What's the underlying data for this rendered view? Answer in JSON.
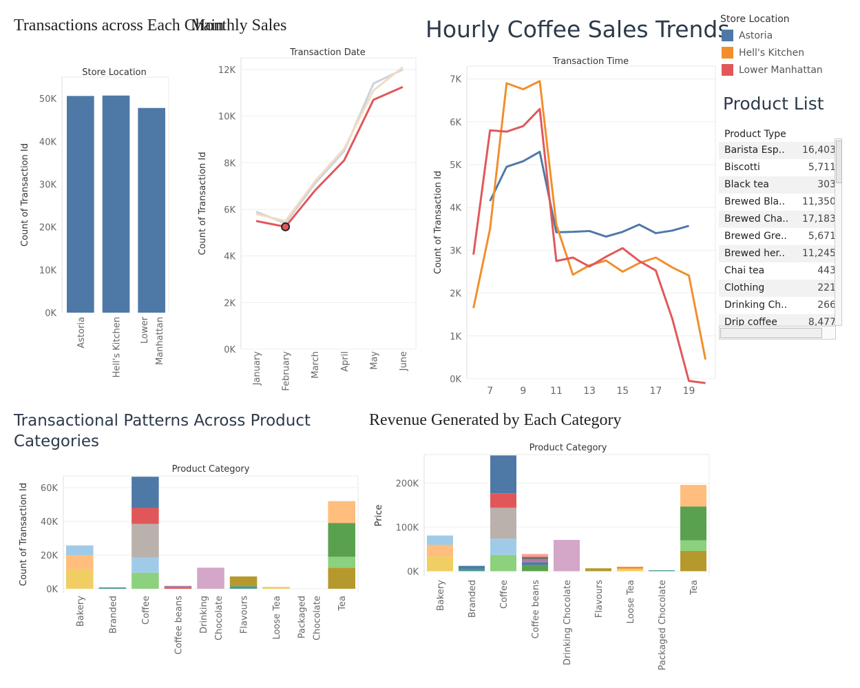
{
  "titles": {
    "chain": "Transactions across Each Chain",
    "monthly": "Monthly Sales",
    "hourly": "Hourly Coffee Sales Trends",
    "patterns": "Transactional Patterns Across Product Categories",
    "revenue": "Revenue Generated by Each Category"
  },
  "legend": {
    "title": "Store Location",
    "items": [
      {
        "label": "Astoria",
        "color": "#4e79a7"
      },
      {
        "label": "Hell's Kitchen",
        "color": "#f28e2b"
      },
      {
        "label": "Lower Manhattan",
        "color": "#e15759"
      }
    ]
  },
  "product_list": {
    "title": "Product List",
    "header": "Product Type",
    "rows": [
      {
        "name": "Barista Esp..",
        "value": "16,403"
      },
      {
        "name": "Biscotti",
        "value": "5,711"
      },
      {
        "name": "Black tea",
        "value": "303"
      },
      {
        "name": "Brewed Bla..",
        "value": "11,350"
      },
      {
        "name": "Brewed Cha..",
        "value": "17,183"
      },
      {
        "name": "Brewed Gre..",
        "value": "5,671"
      },
      {
        "name": "Brewed her..",
        "value": "11,245"
      },
      {
        "name": "Chai tea",
        "value": "443"
      },
      {
        "name": "Clothing",
        "value": "221"
      },
      {
        "name": "Drinking Ch..",
        "value": "266"
      },
      {
        "name": "Drip coffee",
        "value": "8,477"
      }
    ]
  },
  "chart_data": [
    {
      "id": "chain",
      "type": "bar",
      "header": "Store Location",
      "ylabel": "Count of Transaction Id",
      "ylim": [
        0,
        55000
      ],
      "yticks": [
        0,
        10000,
        20000,
        30000,
        40000,
        50000
      ],
      "ytick_labels": [
        "0K",
        "10K",
        "20K",
        "30K",
        "40K",
        "50K"
      ],
      "categories": [
        "Astoria",
        "Hell's Kitchen",
        "Lower Manhattan"
      ],
      "tick_lines": [
        [
          "Astoria"
        ],
        [
          "Hell's Kitchen"
        ],
        [
          "Lower",
          "Manhattan"
        ]
      ],
      "values": [
        50600,
        50700,
        47800
      ],
      "color": "#4e79a7"
    },
    {
      "id": "monthly",
      "type": "line",
      "header": "Transaction Date",
      "ylabel": "Count of Transaction Id",
      "ylim": [
        0,
        12500
      ],
      "yticks": [
        0,
        2000,
        4000,
        6000,
        8000,
        10000,
        12000
      ],
      "ytick_labels": [
        "0K",
        "2K",
        "4K",
        "6K",
        "8K",
        "10K",
        "12K"
      ],
      "categories": [
        "January",
        "February",
        "March",
        "April",
        "May",
        "June"
      ],
      "series": [
        {
          "name": "Astoria",
          "values": [
            5900,
            5400,
            7100,
            8500,
            11400,
            12000
          ],
          "color": "#c8d3de"
        },
        {
          "name": "Hell's Kitchen",
          "values": [
            5800,
            5500,
            7200,
            8600,
            11100,
            12100
          ],
          "color": "#f3dcc2"
        },
        {
          "name": "Lower Manhattan",
          "values": [
            5500,
            5250,
            6800,
            8100,
            10700,
            11250
          ],
          "color": "#e15759"
        }
      ],
      "highlight": {
        "series": "Lower Manhattan",
        "category": "February"
      }
    },
    {
      "id": "hourly",
      "type": "line",
      "header": "Transaction Time",
      "ylabel": "Count of Transaction Id",
      "ylim": [
        0,
        7300
      ],
      "yticks": [
        0,
        1000,
        2000,
        3000,
        4000,
        5000,
        6000,
        7000
      ],
      "ytick_labels": [
        "0K",
        "1K",
        "2K",
        "3K",
        "4K",
        "5K",
        "6K",
        "7K"
      ],
      "xlim": [
        5.6,
        20.6
      ],
      "xticks": [
        7,
        9,
        11,
        13,
        15,
        17,
        19
      ],
      "series": [
        {
          "name": "Astoria",
          "color": "#4e79a7",
          "x": [
            7,
            8,
            9,
            10,
            11,
            12,
            13,
            14,
            15,
            16,
            17,
            18,
            19,
            20
          ],
          "values": [
            4150,
            4950,
            5080,
            5300,
            3420,
            3430,
            3450,
            3320,
            3430,
            3600,
            3400,
            3460,
            3570,
            null
          ]
        },
        {
          "name": "Hell's Kitchen",
          "color": "#f28e2b",
          "x": [
            6,
            7,
            8,
            9,
            10,
            11,
            12,
            13,
            14,
            15,
            16,
            17,
            18,
            19,
            20
          ],
          "values": [
            1650,
            3500,
            6900,
            6760,
            6950,
            3600,
            2430,
            2650,
            2760,
            2500,
            2700,
            2830,
            2600,
            2410,
            450
          ]
        },
        {
          "name": "Lower Manhattan",
          "color": "#e15759",
          "x": [
            6,
            7,
            8,
            9,
            10,
            11,
            12,
            13,
            14,
            15,
            16,
            17,
            18,
            19,
            20
          ],
          "values": [
            2900,
            5800,
            5770,
            5900,
            6300,
            2750,
            2830,
            2620,
            2850,
            3050,
            2750,
            2530,
            1400,
            -50,
            -100
          ]
        }
      ]
    },
    {
      "id": "patterns",
      "type": "bar",
      "stacked": true,
      "header": "Product Category",
      "ylabel": "Count of Transaction Id",
      "ylim": [
        -2500,
        67000
      ],
      "yticks": [
        0,
        20000,
        40000,
        60000
      ],
      "ytick_labels": [
        "0K",
        "20K",
        "40K",
        "60K"
      ],
      "categories": [
        "Bakery",
        "Branded",
        "Coffee",
        "Coffee beans",
        "Drinking Chocolate",
        "Flavours",
        "Loose Tea",
        "Packaged Chocolate",
        "Tea"
      ],
      "tick_lines": [
        [
          "Bakery"
        ],
        [
          "Branded"
        ],
        [
          "Coffee"
        ],
        [
          "Coffee beans"
        ],
        [
          "Drinking",
          "Chocolate"
        ],
        [
          "Flavours"
        ],
        [
          "Loose Tea"
        ],
        [
          "Packaged",
          "Chocolate"
        ],
        [
          "Tea"
        ]
      ],
      "stacks": [
        [
          {
            "value": 11500,
            "color": "#f1ce63"
          },
          {
            "value": 8500,
            "color": "#ffbe7d"
          },
          {
            "value": 5700,
            "color": "#a0cbe8"
          }
        ],
        [
          {
            "value": 800,
            "color": "#499894"
          }
        ],
        [
          {
            "value": 9500,
            "color": "#8cd17d"
          },
          {
            "value": 9000,
            "color": "#a0cbe8"
          },
          {
            "value": 20000,
            "color": "#bab0ac"
          },
          {
            "value": 9500,
            "color": "#e15759"
          },
          {
            "value": 18500,
            "color": "#4e79a7"
          }
        ],
        [
          {
            "value": 800,
            "color": "#e15759"
          },
          {
            "value": 900,
            "color": "#b07aa1"
          }
        ],
        [
          {
            "value": 12500,
            "color": "#d4a6c8"
          }
        ],
        [
          {
            "value": 1500,
            "color": "#499894"
          },
          {
            "value": 5800,
            "color": "#b6992d"
          }
        ],
        [
          {
            "value": 600,
            "color": "#f1ce63"
          },
          {
            "value": 500,
            "color": "#ffbe7d"
          }
        ],
        [],
        [
          {
            "value": 12500,
            "color": "#b6992d"
          },
          {
            "value": 6500,
            "color": "#8cd17d"
          },
          {
            "value": 20000,
            "color": "#59a14f"
          },
          {
            "value": 13000,
            "color": "#ffbe7d"
          }
        ]
      ]
    },
    {
      "id": "revenue",
      "type": "bar",
      "stacked": true,
      "header": "Product Category",
      "ylabel": "Price",
      "ylim": [
        -12000,
        265000
      ],
      "yticks": [
        0,
        100000,
        200000
      ],
      "ytick_labels": [
        "0K",
        "100K",
        "200K"
      ],
      "categories": [
        "Bakery",
        "Branded",
        "Coffee",
        "Coffee beans",
        "Drinking Chocolate",
        "Flavours",
        "Loose Tea",
        "Packaged Chocolate",
        "Tea"
      ],
      "tick_lines": [
        [
          "Bakery"
        ],
        [
          "Branded"
        ],
        [
          "Coffee"
        ],
        [
          "Coffee beans"
        ],
        [
          "Drinking Chocolate"
        ],
        [
          "Flavours"
        ],
        [
          "Loose Tea"
        ],
        [
          "Packaged Chocolate"
        ],
        [
          "Tea"
        ]
      ],
      "stacks": [
        [
          {
            "value": 33000,
            "color": "#f1ce63"
          },
          {
            "value": 27000,
            "color": "#ffbe7d"
          },
          {
            "value": 21000,
            "color": "#a0cbe8"
          }
        ],
        [
          {
            "value": 6000,
            "color": "#499894"
          },
          {
            "value": 6000,
            "color": "#4e79a7"
          }
        ],
        [
          {
            "value": 37000,
            "color": "#8cd17d"
          },
          {
            "value": 37000,
            "color": "#a0cbe8"
          },
          {
            "value": 70000,
            "color": "#bab0ac"
          },
          {
            "value": 33000,
            "color": "#e15759"
          },
          {
            "value": 86000,
            "color": "#4e79a7"
          }
        ],
        [
          {
            "value": 14000,
            "color": "#59a14f"
          },
          {
            "value": 6500,
            "color": "#4e79a7"
          },
          {
            "value": 6500,
            "color": "#b07aa1"
          },
          {
            "value": 5500,
            "color": "#79706e"
          },
          {
            "value": 6500,
            "color": "#ff9d9a"
          }
        ],
        [
          {
            "value": 71000,
            "color": "#d4a6c8"
          }
        ],
        [
          {
            "value": 6500,
            "color": "#b6992d"
          }
        ],
        [
          {
            "value": 5500,
            "color": "#f1ce63"
          },
          {
            "value": 4500,
            "color": "#f28e2b"
          }
        ],
        [
          {
            "value": 2000,
            "color": "#499894"
          }
        ],
        [
          {
            "value": 46000,
            "color": "#b6992d"
          },
          {
            "value": 24000,
            "color": "#8cd17d"
          },
          {
            "value": 77000,
            "color": "#59a14f"
          },
          {
            "value": 49000,
            "color": "#ffbe7d"
          }
        ]
      ]
    }
  ]
}
